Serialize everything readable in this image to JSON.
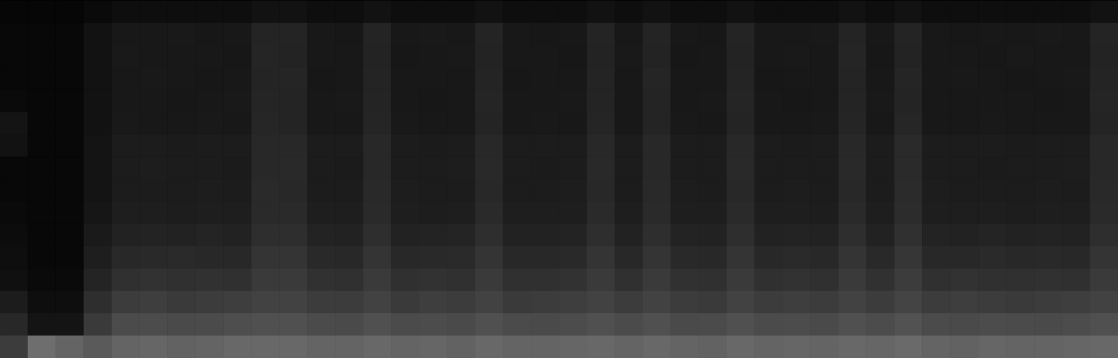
{
  "chart_data": {
    "type": "heatmap",
    "tick_labels": false,
    "color_range": [
      0,
      255
    ],
    "cells": [
      [
        6,
        6,
        6,
        10,
        14,
        14,
        14,
        14,
        14,
        18,
        18,
        14,
        14,
        18,
        14,
        14,
        14,
        18,
        14,
        14,
        14,
        18,
        14,
        18,
        14,
        14,
        18,
        14,
        14,
        14,
        18,
        14,
        18,
        14,
        14,
        14,
        14,
        14,
        14,
        18
      ],
      [
        8,
        8,
        8,
        18,
        24,
        24,
        25,
        23,
        24,
        36,
        36,
        24,
        23,
        36,
        24,
        25,
        24,
        36,
        24,
        23,
        24,
        36,
        24,
        36,
        24,
        23,
        36,
        24,
        24,
        25,
        36,
        24,
        36,
        24,
        23,
        24,
        24,
        25,
        24,
        36
      ],
      [
        8,
        8,
        8,
        18,
        25,
        24,
        24,
        24,
        23,
        37,
        35,
        24,
        24,
        35,
        23,
        24,
        25,
        35,
        24,
        24,
        23,
        35,
        25,
        35,
        23,
        24,
        35,
        24,
        25,
        24,
        37,
        23,
        35,
        24,
        24,
        23,
        25,
        24,
        24,
        35
      ],
      [
        8,
        8,
        8,
        18,
        24,
        25,
        24,
        23,
        24,
        36,
        37,
        23,
        24,
        36,
        24,
        24,
        24,
        36,
        23,
        24,
        24,
        36,
        24,
        37,
        24,
        24,
        36,
        23,
        24,
        24,
        36,
        24,
        37,
        24,
        25,
        24,
        23,
        24,
        25,
        36
      ],
      [
        10,
        8,
        8,
        18,
        24,
        24,
        23,
        24,
        25,
        37,
        36,
        24,
        25,
        36,
        24,
        23,
        24,
        37,
        24,
        24,
        25,
        36,
        24,
        36,
        24,
        25,
        37,
        24,
        23,
        24,
        36,
        25,
        36,
        24,
        24,
        24,
        24,
        23,
        24,
        37
      ],
      [
        20,
        8,
        8,
        18,
        25,
        24,
        24,
        25,
        24,
        38,
        36,
        24,
        24,
        37,
        25,
        24,
        24,
        36,
        24,
        25,
        24,
        37,
        24,
        36,
        25,
        24,
        36,
        24,
        24,
        25,
        37,
        24,
        38,
        24,
        24,
        25,
        24,
        24,
        24,
        36
      ],
      [
        18,
        8,
        8,
        20,
        28,
        28,
        27,
        28,
        28,
        40,
        40,
        28,
        28,
        40,
        28,
        27,
        28,
        40,
        28,
        28,
        28,
        40,
        28,
        40,
        28,
        28,
        40,
        28,
        27,
        28,
        40,
        28,
        42,
        28,
        28,
        28,
        27,
        28,
        28,
        40
      ],
      [
        8,
        8,
        8,
        20,
        28,
        29,
        28,
        28,
        27,
        40,
        41,
        28,
        27,
        40,
        28,
        28,
        29,
        41,
        28,
        27,
        28,
        41,
        28,
        40,
        28,
        28,
        41,
        28,
        28,
        28,
        41,
        28,
        42,
        28,
        28,
        27,
        28,
        28,
        29,
        40
      ],
      [
        8,
        8,
        8,
        20,
        28,
        28,
        28,
        29,
        28,
        42,
        40,
        28,
        28,
        41,
        29,
        28,
        28,
        40,
        28,
        28,
        29,
        40,
        28,
        41,
        29,
        28,
        40,
        28,
        29,
        28,
        40,
        28,
        43,
        29,
        28,
        28,
        28,
        29,
        28,
        41
      ],
      [
        10,
        8,
        8,
        22,
        30,
        30,
        29,
        30,
        30,
        42,
        42,
        30,
        30,
        42,
        30,
        29,
        30,
        42,
        30,
        30,
        30,
        42,
        30,
        42,
        30,
        30,
        42,
        30,
        30,
        29,
        42,
        30,
        44,
        30,
        30,
        30,
        29,
        30,
        30,
        42
      ],
      [
        12,
        8,
        8,
        26,
        34,
        35,
        34,
        36,
        34,
        46,
        46,
        35,
        34,
        46,
        34,
        35,
        36,
        46,
        34,
        34,
        35,
        46,
        34,
        46,
        35,
        34,
        46,
        34,
        35,
        34,
        46,
        34,
        48,
        35,
        34,
        36,
        34,
        35,
        34,
        46
      ],
      [
        14,
        8,
        8,
        30,
        40,
        41,
        42,
        40,
        40,
        52,
        52,
        41,
        40,
        52,
        40,
        41,
        42,
        52,
        40,
        40,
        41,
        52,
        40,
        52,
        41,
        40,
        52,
        40,
        42,
        40,
        52,
        41,
        54,
        40,
        40,
        42,
        40,
        41,
        40,
        52
      ],
      [
        16,
        10,
        10,
        36,
        48,
        50,
        48,
        49,
        48,
        58,
        58,
        49,
        48,
        58,
        48,
        50,
        48,
        58,
        48,
        48,
        50,
        58,
        48,
        58,
        49,
        48,
        58,
        48,
        50,
        48,
        58,
        49,
        60,
        48,
        50,
        48,
        48,
        49,
        48,
        58
      ],
      [
        28,
        14,
        14,
        46,
        60,
        62,
        58,
        60,
        62,
        66,
        66,
        60,
        60,
        66,
        58,
        62,
        60,
        66,
        58,
        60,
        62,
        66,
        60,
        66,
        60,
        58,
        66,
        60,
        62,
        60,
        66,
        60,
        68,
        60,
        62,
        60,
        58,
        60,
        62,
        66
      ],
      [
        40,
        20,
        20,
        58,
        75,
        76,
        74,
        75,
        78,
        80,
        80,
        75,
        74,
        80,
        75,
        76,
        74,
        80,
        75,
        74,
        76,
        80,
        75,
        80,
        74,
        75,
        80,
        75,
        76,
        74,
        80,
        76,
        82,
        75,
        74,
        76,
        75,
        74,
        76,
        80
      ],
      [
        60,
        110,
        100,
        90,
        100,
        102,
        98,
        100,
        104,
        104,
        104,
        100,
        100,
        104,
        100,
        102,
        98,
        104,
        100,
        100,
        102,
        104,
        100,
        104,
        100,
        98,
        104,
        100,
        102,
        100,
        104,
        102,
        106,
        100,
        98,
        102,
        100,
        100,
        102,
        104
      ]
    ]
  }
}
